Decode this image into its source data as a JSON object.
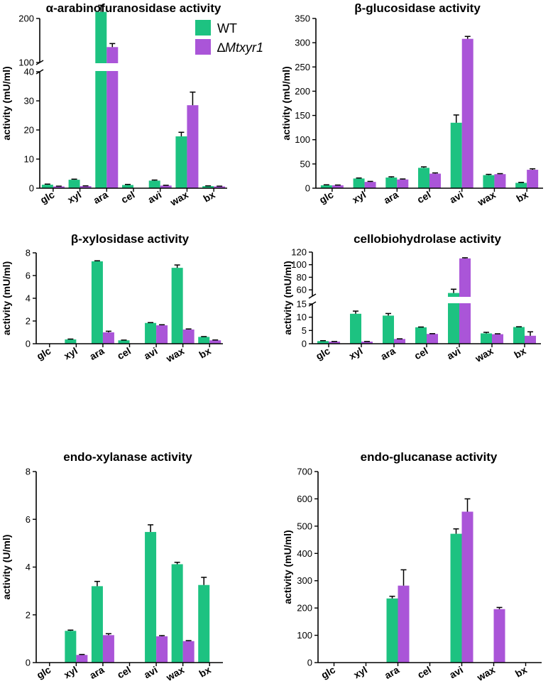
{
  "figure": {
    "legend": [
      {
        "label": "WT",
        "italic": false
      },
      {
        "label": "∆Mtxyr1",
        "prefix": "∆",
        "italic_part": "Mtxyr1"
      }
    ],
    "colors": {
      "WT": "#1dc281",
      "Mtxyr1": "#aa55d8",
      "axis": "#000000"
    }
  },
  "chart_data": [
    {
      "type": "bar",
      "title": "α-arabinofuranosidase activity",
      "ylabel": "activity (mU/ml)",
      "xlabel": "",
      "categories": [
        "glc",
        "xyl",
        "ara",
        "cel",
        "avi",
        "wax",
        "bx"
      ],
      "axis_break": {
        "lower": [
          0,
          40
        ],
        "upper": [
          100,
          200
        ]
      },
      "yticks_lower": [
        0,
        10,
        20,
        30,
        40
      ],
      "yticks_upper": [
        100,
        200
      ],
      "yticklabels_upper": [
        "100",
        "200"
      ],
      "series": [
        {
          "name": "WT",
          "values": [
            1.2,
            2.9,
            215,
            1.1,
            2.6,
            17.8,
            0.7
          ],
          "errors": [
            0.2,
            0.2,
            15,
            0.2,
            0.2,
            1.4,
            0.1
          ]
        },
        {
          "name": "∆Mtxyr1",
          "values": [
            0.6,
            0.7,
            135,
            null,
            0.9,
            28.5,
            0.6
          ],
          "errors": [
            0.1,
            0.1,
            8,
            0,
            0.1,
            4.5,
            0.1
          ]
        }
      ]
    },
    {
      "type": "bar",
      "title": "β-glucosidase activity",
      "ylabel": "activity (mU/ml)",
      "xlabel": "",
      "categories": [
        "glc",
        "xyl",
        "ara",
        "cel",
        "avi",
        "wax",
        "bx"
      ],
      "ylim": [
        0,
        350
      ],
      "yticks": [
        0,
        50,
        100,
        150,
        200,
        250,
        300,
        350
      ],
      "series": [
        {
          "name": "WT",
          "values": [
            6,
            20,
            22,
            42,
            135,
            27,
            11
          ],
          "errors": [
            1,
            1,
            1.5,
            2,
            16,
            1.5,
            1
          ]
        },
        {
          "name": "∆Mtxyr1",
          "values": [
            6,
            13,
            18,
            30,
            308,
            29,
            38
          ],
          "errors": [
            0.5,
            1,
            1,
            1.5,
            5,
            1,
            2
          ]
        }
      ]
    },
    {
      "type": "bar",
      "title": "β-xylosidase activity",
      "ylabel": "activity (mU/ml)",
      "xlabel": "",
      "categories": [
        "glc",
        "xyl",
        "ara",
        "cel",
        "avi",
        "wax",
        "bx"
      ],
      "ylim": [
        0,
        8
      ],
      "yticks": [
        0,
        2,
        4,
        6,
        8
      ],
      "series": [
        {
          "name": "WT",
          "values": [
            null,
            0.38,
            7.25,
            0.3,
            1.83,
            6.68,
            0.6
          ],
          "errors": [
            0,
            0.03,
            0.05,
            0.02,
            0.03,
            0.25,
            0.03
          ]
        },
        {
          "name": "∆Mtxyr1",
          "values": [
            null,
            null,
            1.0,
            null,
            1.62,
            1.25,
            0.3
          ],
          "errors": [
            0,
            0,
            0.1,
            0,
            0.05,
            0.05,
            0.03
          ]
        }
      ]
    },
    {
      "type": "bar",
      "title": "cellobiohydrolase activity",
      "ylabel": "activity (mU/ml)",
      "xlabel": "",
      "categories": [
        "glc",
        "xyl",
        "ara",
        "cel",
        "avi",
        "wax",
        "bx"
      ],
      "axis_break": {
        "lower": [
          0,
          15
        ],
        "upper": [
          50,
          120
        ]
      },
      "yticks_lower": [
        0,
        5,
        10,
        15
      ],
      "yticks_upper": [
        60,
        80,
        100,
        120
      ],
      "yticklabels_upper": [
        "60",
        "80",
        "100",
        "120"
      ],
      "series": [
        {
          "name": "WT",
          "values": [
            1.0,
            11.3,
            10.6,
            6.2,
            55,
            3.9,
            6.3
          ],
          "errors": [
            0.15,
            1.0,
            0.8,
            0.1,
            6,
            0.4,
            0.1
          ]
        },
        {
          "name": "∆Mtxyr1",
          "values": [
            0.8,
            0.8,
            1.8,
            3.7,
            110,
            3.6,
            3.0
          ],
          "errors": [
            0.05,
            0.05,
            0.05,
            0.1,
            1,
            0.15,
            1.5
          ]
        }
      ]
    },
    {
      "type": "bar",
      "title": "endo-xylanase activity",
      "ylabel": "activity (U/ml)",
      "xlabel": "",
      "categories": [
        "glc",
        "xyl",
        "ara",
        "cel",
        "avi",
        "wax",
        "bx"
      ],
      "ylim": [
        0,
        8
      ],
      "yticks": [
        0,
        2,
        4,
        6,
        8
      ],
      "series": [
        {
          "name": "WT",
          "values": [
            null,
            1.33,
            3.2,
            null,
            5.47,
            4.12,
            3.25
          ],
          "errors": [
            0,
            0.03,
            0.2,
            0,
            0.3,
            0.08,
            0.32
          ]
        },
        {
          "name": "∆Mtxyr1",
          "values": [
            null,
            0.32,
            1.15,
            null,
            1.1,
            0.9,
            null
          ],
          "errors": [
            0,
            0.02,
            0.06,
            0,
            0.03,
            0.02,
            0
          ]
        }
      ]
    },
    {
      "type": "bar",
      "title": "endo-glucanase activity",
      "ylabel": "activity (mU/ml)",
      "xlabel": "",
      "categories": [
        "glc",
        "xyl",
        "ara",
        "cel",
        "avi",
        "wax",
        "bx"
      ],
      "ylim": [
        0,
        700
      ],
      "yticks": [
        0,
        100,
        200,
        300,
        400,
        500,
        600,
        700
      ],
      "series": [
        {
          "name": "WT",
          "values": [
            null,
            null,
            235,
            null,
            472,
            null,
            null
          ],
          "errors": [
            0,
            0,
            8,
            0,
            18,
            0,
            0
          ]
        },
        {
          "name": "∆Mtxyr1",
          "values": [
            null,
            null,
            282,
            null,
            553,
            196,
            null
          ],
          "errors": [
            0,
            0,
            58,
            0,
            47,
            6,
            0
          ]
        }
      ]
    }
  ]
}
